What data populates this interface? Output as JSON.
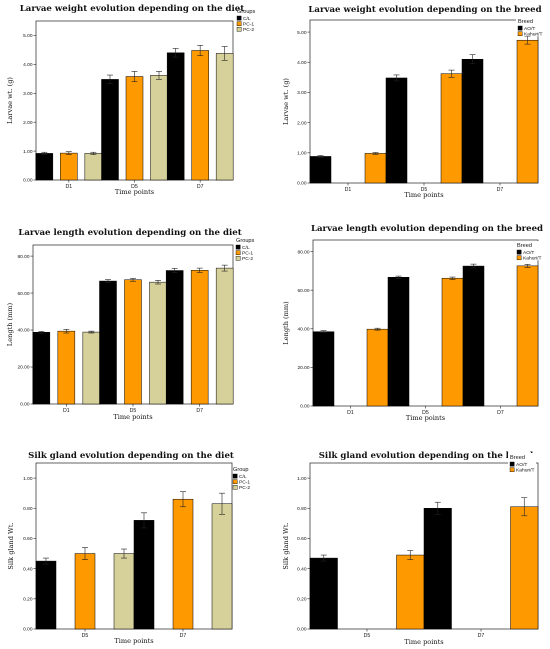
{
  "colors": {
    "C/L": "#000000",
    "PC-1": "#ff9900",
    "PC-2": "#d6d09a",
    "AO/T": "#000000",
    "Kahuri/T": "#ff9900"
  },
  "chart_data": [
    {
      "type": "bar",
      "title": "Larvae weight evolution depending on the diet",
      "xlabel": "Time points",
      "ylabel": "Larvae wt. (g)",
      "ylim": [
        0,
        5.5
      ],
      "yticks": [
        "0.00",
        "1.00",
        "2.00",
        "3.00",
        "4.00",
        "5.00"
      ],
      "categories": [
        "D1",
        "D5",
        "D7"
      ],
      "legend_title": "Groups",
      "legend_placement": "top-right-outside",
      "series": [
        {
          "name": "C/L",
          "values": [
            0.92,
            3.48,
            4.4
          ],
          "errors": [
            0.04,
            0.15,
            0.15
          ]
        },
        {
          "name": "PC-1",
          "values": [
            0.93,
            3.58,
            4.48
          ],
          "errors": [
            0.05,
            0.18,
            0.18
          ]
        },
        {
          "name": "PC-2",
          "values": [
            0.92,
            3.62,
            4.38
          ],
          "errors": [
            0.04,
            0.14,
            0.24
          ]
        }
      ]
    },
    {
      "type": "bar",
      "title": "Larvae weight evolution depending on the breed",
      "xlabel": "Time points",
      "ylabel": "Larvae wt. (g)",
      "ylim": [
        0,
        5.4
      ],
      "yticks": [
        "0.00",
        "1.00",
        "2.00",
        "3.00",
        "4.00",
        "5.00"
      ],
      "categories": [
        "D1",
        "D5",
        "D7"
      ],
      "legend_title": "Breed",
      "legend_placement": "top-right",
      "series": [
        {
          "name": "AO/T",
          "values": [
            0.88,
            3.48,
            4.1
          ],
          "errors": [
            0.03,
            0.1,
            0.15
          ]
        },
        {
          "name": "Kahuri/T",
          "values": [
            0.98,
            3.62,
            4.73
          ],
          "errors": [
            0.03,
            0.12,
            0.13
          ]
        }
      ]
    },
    {
      "type": "bar",
      "title": "Larvae length evolution depending on the diet",
      "xlabel": "Time points",
      "ylabel": "Length (mm)",
      "ylim": [
        0,
        86
      ],
      "yticks": [
        "0.00",
        "20.00",
        "40.00",
        "60.00",
        "80.00"
      ],
      "categories": [
        "D1",
        "D5",
        "D7"
      ],
      "legend_title": "Groups",
      "legend_placement": "top-right-outside",
      "series": [
        {
          "name": "C/L",
          "values": [
            38.8,
            66.5,
            72.2
          ],
          "errors": [
            0.5,
            0.8,
            1.2
          ]
        },
        {
          "name": "PC-1",
          "values": [
            39.4,
            67.2,
            72.3
          ],
          "errors": [
            1.0,
            0.8,
            1.2
          ]
        },
        {
          "name": "PC-2",
          "values": [
            38.9,
            65.9,
            73.5
          ],
          "errors": [
            0.5,
            1.0,
            1.6
          ]
        }
      ]
    },
    {
      "type": "bar",
      "title": "Larvae length evolution depending on the breed",
      "xlabel": "Time points",
      "ylabel": "Length (mm)",
      "ylim": [
        0,
        86
      ],
      "yticks": [
        "0.00",
        "20.00",
        "40.00",
        "60.00",
        "80.00"
      ],
      "categories": [
        "D1",
        "D5",
        "D7"
      ],
      "legend_title": "Breed",
      "legend_placement": "top-right",
      "series": [
        {
          "name": "AO/T",
          "values": [
            38.5,
            66.7,
            72.5
          ],
          "errors": [
            0.5,
            0.6,
            1.0
          ]
        },
        {
          "name": "Kahuri/T",
          "values": [
            39.8,
            66.2,
            72.6
          ],
          "errors": [
            0.5,
            0.6,
            0.8
          ]
        }
      ]
    },
    {
      "type": "bar",
      "title": "Silk gland evolution depending on the diet",
      "xlabel": "Time points",
      "ylabel": "Silk gland Wt.",
      "ylim": [
        0,
        1.1
      ],
      "yticks": [
        "0.00",
        "0.20",
        "0.40",
        "0.60",
        "0.80",
        "1.00"
      ],
      "categories": [
        "D5",
        "D7"
      ],
      "legend_title": "Group",
      "legend_placement": "top-right",
      "series": [
        {
          "name": "C/L",
          "values": [
            0.45,
            0.72
          ],
          "errors": [
            0.02,
            0.05
          ]
        },
        {
          "name": "PC-1",
          "values": [
            0.5,
            0.86
          ],
          "errors": [
            0.04,
            0.05
          ]
        },
        {
          "name": "PC-2",
          "values": [
            0.5,
            0.83
          ],
          "errors": [
            0.03,
            0.07
          ]
        }
      ]
    },
    {
      "type": "bar",
      "title": "Silk gland evolution depending on the breed",
      "xlabel": "Time points",
      "ylabel": "Silk gland Wt.",
      "ylim": [
        0,
        1.1
      ],
      "yticks": [
        "0.00",
        "0.20",
        "0.40",
        "0.60",
        "0.80",
        "1.00"
      ],
      "categories": [
        "D5",
        "D7"
      ],
      "legend_title": "Breed",
      "legend_placement": "top-right",
      "series": [
        {
          "name": "AO/T",
          "values": [
            0.47,
            0.8
          ],
          "errors": [
            0.02,
            0.04
          ]
        },
        {
          "name": "Kahuri/T",
          "values": [
            0.49,
            0.81
          ],
          "errors": [
            0.03,
            0.06
          ]
        }
      ]
    }
  ]
}
